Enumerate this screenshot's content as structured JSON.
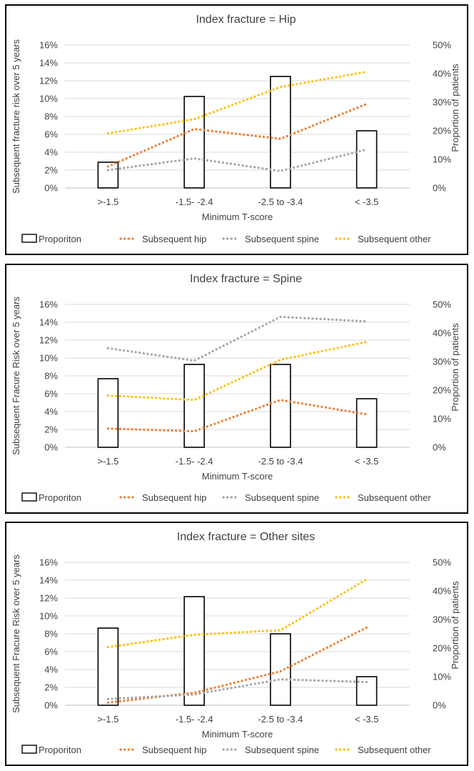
{
  "legend": {
    "proportion": "Proporiton",
    "hip": "Subsequent hip",
    "spine": "Subsequent spine",
    "other": "Subsequent other"
  },
  "colors": {
    "hip": "#ED7D31",
    "spine": "#A5A5A5",
    "other": "#FFC000",
    "bar_stroke": "#000000",
    "grid": "#D9D9D9"
  },
  "chart_data": [
    {
      "type": "bar",
      "title": "Index fracture = Hip",
      "xlabel": "Minimum T-score",
      "ylabel": "Subsequent fracture risk over 5 years",
      "y2label": "Proportion of patients",
      "categories": [
        ">-1.5",
        "-1.5- -2.4",
        "-2.5 to -3.4",
        "< -3.5"
      ],
      "ylim": [
        0,
        16
      ],
      "y2lim": [
        0,
        50
      ],
      "yticks": [
        "0%",
        "2%",
        "4%",
        "6%",
        "8%",
        "10%",
        "12%",
        "14%",
        "16%"
      ],
      "y2ticks": [
        "0%",
        "10%",
        "20%",
        "30%",
        "40%",
        "50%"
      ],
      "series": [
        {
          "name": "Proporiton",
          "kind": "bar",
          "axis": "right",
          "values": [
            9,
            32,
            39,
            20
          ]
        },
        {
          "name": "Subsequent hip",
          "kind": "line",
          "axis": "left",
          "values": [
            2.4,
            6.6,
            5.5,
            9.4
          ]
        },
        {
          "name": "Subsequent spine",
          "kind": "line",
          "axis": "left",
          "values": [
            2.0,
            3.3,
            1.9,
            4.3
          ]
        },
        {
          "name": "Subsequent other",
          "kind": "line",
          "axis": "left",
          "values": [
            6.1,
            7.7,
            11.3,
            13.0
          ]
        }
      ]
    },
    {
      "type": "bar",
      "title": "Index fracture = Spine",
      "xlabel": "Minimum T-score",
      "ylabel": "Subsequent Fracure Risk over 5 years",
      "y2label": "Proportion of patients",
      "categories": [
        ">-1.5",
        "-1.5- -2.4",
        "-2.5 to -3.4",
        "< -3.5"
      ],
      "ylim": [
        0,
        16
      ],
      "y2lim": [
        0,
        50
      ],
      "yticks": [
        "0%",
        "2%",
        "4%",
        "6%",
        "8%",
        "10%",
        "12%",
        "14%",
        "16%"
      ],
      "y2ticks": [
        "0%",
        "10%",
        "20%",
        "30%",
        "40%",
        "50%"
      ],
      "series": [
        {
          "name": "Proporiton",
          "kind": "bar",
          "axis": "right",
          "values": [
            24,
            29,
            29,
            17
          ]
        },
        {
          "name": "Subsequent hip",
          "kind": "line",
          "axis": "left",
          "values": [
            2.1,
            1.8,
            5.3,
            3.7
          ]
        },
        {
          "name": "Subsequent spine",
          "kind": "line",
          "axis": "left",
          "values": [
            11.1,
            9.7,
            14.6,
            14.1
          ]
        },
        {
          "name": "Subsequent other",
          "kind": "line",
          "axis": "left",
          "values": [
            5.8,
            5.3,
            9.8,
            11.8
          ]
        }
      ]
    },
    {
      "type": "bar",
      "title": "Index fracture = Other sites",
      "xlabel": "Minimum T-score",
      "ylabel": "Subsequent Fracure Risk over 5 years",
      "y2label": "Proportion of patients",
      "categories": [
        ">-1.5",
        "-1.5- -2.4",
        "-2.5 to -3.4",
        "< -3.5"
      ],
      "ylim": [
        0,
        16
      ],
      "y2lim": [
        0,
        50
      ],
      "yticks": [
        "0%",
        "2%",
        "4%",
        "6%",
        "8%",
        "10%",
        "12%",
        "14%",
        "16%"
      ],
      "y2ticks": [
        "0%",
        "10%",
        "20%",
        "30%",
        "40%",
        "50%"
      ],
      "series": [
        {
          "name": "Proporiton",
          "kind": "bar",
          "axis": "right",
          "values": [
            27,
            38,
            25,
            10
          ]
        },
        {
          "name": "Subsequent hip",
          "kind": "line",
          "axis": "left",
          "values": [
            0.3,
            1.4,
            3.8,
            8.7
          ]
        },
        {
          "name": "Subsequent spine",
          "kind": "line",
          "axis": "left",
          "values": [
            0.7,
            1.2,
            2.9,
            2.6
          ]
        },
        {
          "name": "Subsequent other",
          "kind": "line",
          "axis": "left",
          "values": [
            6.5,
            7.9,
            8.4,
            14.1
          ]
        }
      ]
    }
  ]
}
